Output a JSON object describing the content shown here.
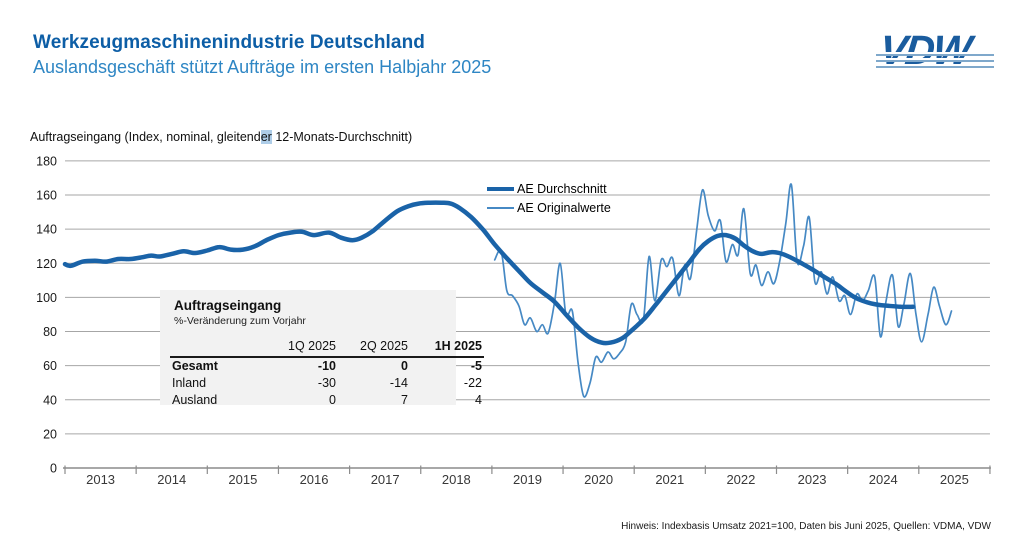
{
  "header": {
    "title": "Werkzeugmaschinenindustrie Deutschland",
    "subtitle": "Auslandsgeschäft stützt Aufträge im ersten Halbjahr 2025",
    "logo_text": "VDW"
  },
  "chart_label": {
    "pre": "Auftragseingang (Index, nominal, gleitend",
    "highlight": "er",
    "post": " 12-Monats-Durchschnitt)"
  },
  "chart_data": {
    "type": "line",
    "title": "Auftragseingang (Index, nominal, gleitender 12-Monats-Durchschnitt)",
    "ylim": [
      0,
      180
    ],
    "ytick_step": 20,
    "x_years": [
      "2013",
      "2014",
      "2015",
      "2016",
      "2017",
      "2018",
      "2019",
      "2020",
      "2021",
      "2022",
      "2023",
      "2024",
      "2025"
    ],
    "grid": true,
    "legend_position": "top-center",
    "grid_color": "#a6a6a6",
    "axis_color": "#8c8c8c",
    "series": [
      {
        "name": "AE Durchschnitt",
        "color": "#1a63a8",
        "stroke_width": 4.5,
        "points": [
          [
            2013.0,
            119.5
          ],
          [
            2013.08,
            118.5
          ],
          [
            2013.25,
            121
          ],
          [
            2013.42,
            121.5
          ],
          [
            2013.58,
            121
          ],
          [
            2013.75,
            122.5
          ],
          [
            2013.92,
            122.5
          ],
          [
            2014.08,
            123.5
          ],
          [
            2014.21,
            124.5
          ],
          [
            2014.33,
            124
          ],
          [
            2014.5,
            125.5
          ],
          [
            2014.67,
            127
          ],
          [
            2014.83,
            126
          ],
          [
            2015.0,
            127.5
          ],
          [
            2015.17,
            129.5
          ],
          [
            2015.33,
            128
          ],
          [
            2015.5,
            128
          ],
          [
            2015.67,
            130
          ],
          [
            2015.83,
            133.5
          ],
          [
            2016.0,
            136.5
          ],
          [
            2016.17,
            138
          ],
          [
            2016.33,
            138.5
          ],
          [
            2016.5,
            136.5
          ],
          [
            2016.71,
            138
          ],
          [
            2016.88,
            135
          ],
          [
            2017.04,
            133.5
          ],
          [
            2017.17,
            135
          ],
          [
            2017.33,
            139
          ],
          [
            2017.5,
            145
          ],
          [
            2017.67,
            150.5
          ],
          [
            2017.83,
            153.5
          ],
          [
            2017.97,
            155
          ],
          [
            2018.13,
            155.5
          ],
          [
            2018.29,
            155.5
          ],
          [
            2018.42,
            155
          ],
          [
            2018.54,
            152.5
          ],
          [
            2018.71,
            147
          ],
          [
            2018.88,
            139.5
          ],
          [
            2019.04,
            131
          ],
          [
            2019.21,
            123
          ],
          [
            2019.38,
            115.5
          ],
          [
            2019.54,
            108.5
          ],
          [
            2019.71,
            103
          ],
          [
            2019.88,
            97.5
          ],
          [
            2020.04,
            90
          ],
          [
            2020.21,
            82.5
          ],
          [
            2020.38,
            76.5
          ],
          [
            2020.54,
            73.5
          ],
          [
            2020.67,
            73.5
          ],
          [
            2020.83,
            76
          ],
          [
            2020.96,
            80.5
          ],
          [
            2021.13,
            87
          ],
          [
            2021.29,
            95
          ],
          [
            2021.46,
            104
          ],
          [
            2021.63,
            113
          ],
          [
            2021.79,
            121.5
          ],
          [
            2021.92,
            128.5
          ],
          [
            2022.04,
            133
          ],
          [
            2022.17,
            136
          ],
          [
            2022.29,
            136.5
          ],
          [
            2022.42,
            134.5
          ],
          [
            2022.54,
            130.5
          ],
          [
            2022.67,
            127
          ],
          [
            2022.79,
            125.5
          ],
          [
            2022.92,
            126.5
          ],
          [
            2023.04,
            126
          ],
          [
            2023.17,
            124
          ],
          [
            2023.33,
            120.5
          ],
          [
            2023.5,
            116.5
          ],
          [
            2023.67,
            112
          ],
          [
            2023.83,
            108
          ],
          [
            2023.96,
            104
          ],
          [
            2024.08,
            100.5
          ],
          [
            2024.21,
            98
          ],
          [
            2024.33,
            96.5
          ],
          [
            2024.46,
            95.5
          ],
          [
            2024.58,
            95
          ],
          [
            2024.75,
            94.5
          ],
          [
            2024.92,
            94.5
          ]
        ]
      },
      {
        "name": "AE Originalwerte",
        "color": "#4689c4",
        "stroke_width": 1.7,
        "points": [
          [
            2019.04,
            122
          ],
          [
            2019.13,
            127
          ],
          [
            2019.21,
            104
          ],
          [
            2019.29,
            101
          ],
          [
            2019.38,
            95
          ],
          [
            2019.46,
            84
          ],
          [
            2019.54,
            88
          ],
          [
            2019.63,
            80
          ],
          [
            2019.71,
            84
          ],
          [
            2019.79,
            79
          ],
          [
            2019.88,
            97
          ],
          [
            2019.96,
            120
          ],
          [
            2020.04,
            90
          ],
          [
            2020.13,
            92
          ],
          [
            2020.21,
            62
          ],
          [
            2020.29,
            42
          ],
          [
            2020.38,
            50
          ],
          [
            2020.46,
            65
          ],
          [
            2020.54,
            62
          ],
          [
            2020.63,
            68
          ],
          [
            2020.71,
            64
          ],
          [
            2020.79,
            67
          ],
          [
            2020.88,
            74
          ],
          [
            2020.96,
            96
          ],
          [
            2021.04,
            90
          ],
          [
            2021.13,
            87
          ],
          [
            2021.21,
            124
          ],
          [
            2021.29,
            98
          ],
          [
            2021.38,
            122
          ],
          [
            2021.46,
            118
          ],
          [
            2021.54,
            123
          ],
          [
            2021.63,
            101
          ],
          [
            2021.71,
            119
          ],
          [
            2021.79,
            111
          ],
          [
            2021.88,
            140
          ],
          [
            2021.96,
            163
          ],
          [
            2022.04,
            148
          ],
          [
            2022.13,
            139
          ],
          [
            2022.21,
            145
          ],
          [
            2022.29,
            121
          ],
          [
            2022.38,
            131
          ],
          [
            2022.46,
            125
          ],
          [
            2022.54,
            152
          ],
          [
            2022.63,
            114
          ],
          [
            2022.71,
            119
          ],
          [
            2022.79,
            107
          ],
          [
            2022.88,
            115
          ],
          [
            2022.96,
            108
          ],
          [
            2023.04,
            120
          ],
          [
            2023.13,
            143
          ],
          [
            2023.21,
            166
          ],
          [
            2023.29,
            121
          ],
          [
            2023.38,
            130
          ],
          [
            2023.46,
            147
          ],
          [
            2023.54,
            109
          ],
          [
            2023.63,
            115
          ],
          [
            2023.71,
            102
          ],
          [
            2023.79,
            112
          ],
          [
            2023.88,
            98
          ],
          [
            2023.96,
            101
          ],
          [
            2024.04,
            90
          ],
          [
            2024.13,
            102
          ],
          [
            2024.21,
            98
          ],
          [
            2024.29,
            104
          ],
          [
            2024.38,
            112
          ],
          [
            2024.46,
            77
          ],
          [
            2024.54,
            98
          ],
          [
            2024.63,
            113
          ],
          [
            2024.71,
            83
          ],
          [
            2024.79,
            96
          ],
          [
            2024.88,
            114
          ],
          [
            2024.96,
            90
          ],
          [
            2025.04,
            74
          ],
          [
            2025.13,
            90
          ],
          [
            2025.21,
            106
          ],
          [
            2025.29,
            95
          ],
          [
            2025.38,
            84
          ],
          [
            2025.46,
            92
          ]
        ]
      }
    ]
  },
  "inset_table": {
    "title": "Auftragseingang",
    "subtitle": "%-Veränderung zum Vorjahr",
    "columns": [
      "1Q 2025",
      "2Q 2025",
      "1H 2025"
    ],
    "rows": [
      {
        "label": "Gesamt",
        "values": [
          "-10",
          "0",
          "-5"
        ]
      },
      {
        "label": "Inland",
        "values": [
          "-30",
          "-14",
          "-22"
        ]
      },
      {
        "label": "Ausland",
        "values": [
          "0",
          "7",
          "4"
        ]
      }
    ]
  },
  "footer": {
    "note": "Hinweis: Indexbasis Umsatz 2021=100, Daten bis Juni 2025, Quellen: VDMA, VDW"
  }
}
